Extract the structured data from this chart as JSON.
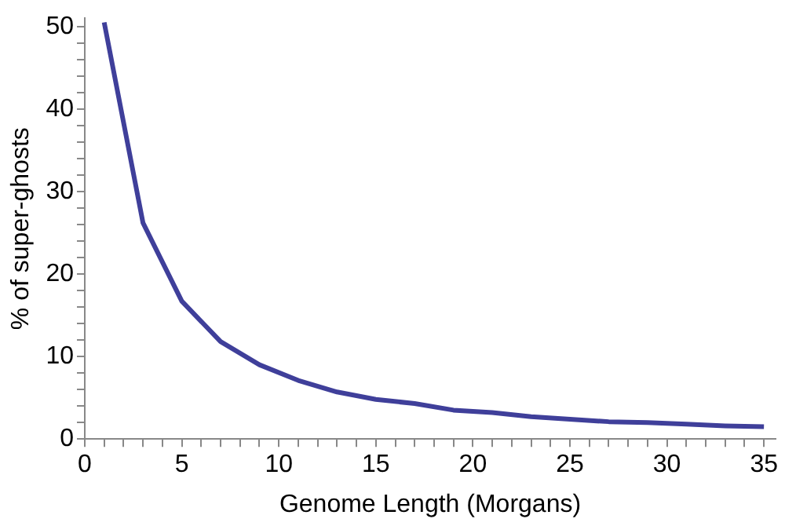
{
  "chart_data": {
    "type": "line",
    "xlabel": "Genome Length (Morgans)",
    "ylabel": "% of super-ghosts",
    "x": [
      1,
      3,
      5,
      7,
      9,
      11,
      13,
      15,
      17,
      19,
      21,
      23,
      25,
      27,
      29,
      31,
      33,
      35
    ],
    "series": [
      {
        "color": "#3f3f9a",
        "values": [
          50.5,
          26.2,
          16.7,
          11.8,
          9.0,
          7.1,
          5.7,
          4.8,
          4.3,
          3.5,
          3.2,
          2.7,
          2.4,
          2.1,
          2.0,
          1.8,
          1.6,
          1.5
        ]
      }
    ],
    "xlim": [
      0,
      35.6
    ],
    "ylim": [
      0,
      51
    ],
    "xticks": [
      0,
      {
        "value": 1,
        "label": null
      },
      {
        "value": 2,
        "label": null
      },
      {
        "value": 3,
        "label": null
      },
      {
        "value": 4,
        "label": null
      },
      5,
      {
        "value": 6,
        "label": null
      },
      {
        "value": 7,
        "label": null
      },
      {
        "value": 8,
        "label": null
      },
      {
        "value": 9,
        "label": null
      },
      10,
      {
        "value": 11,
        "label": null
      },
      {
        "value": 12,
        "label": null
      },
      {
        "value": 13,
        "label": null
      },
      {
        "value": 14,
        "label": null
      },
      15,
      {
        "value": 16,
        "label": null
      },
      {
        "value": 17,
        "label": null
      },
      {
        "value": 18,
        "label": null
      },
      {
        "value": 19,
        "label": null
      },
      20,
      {
        "value": 21,
        "label": null
      },
      {
        "value": 22,
        "label": null
      },
      {
        "value": 23,
        "label": null
      },
      {
        "value": 24,
        "label": null
      },
      25,
      {
        "value": 26,
        "label": null
      },
      {
        "value": 27,
        "label": null
      },
      {
        "value": 28,
        "label": null
      },
      {
        "value": 29,
        "label": null
      },
      30,
      {
        "value": 31,
        "label": null
      },
      {
        "value": 32,
        "label": null
      },
      {
        "value": 33,
        "label": null
      },
      {
        "value": 34,
        "label": null
      },
      35
    ],
    "yticks": [
      0,
      {
        "value": 2,
        "label": null
      },
      {
        "value": 4,
        "label": null
      },
      {
        "value": 6,
        "label": null
      },
      {
        "value": 8,
        "label": null
      },
      10,
      {
        "value": 12,
        "label": null
      },
      {
        "value": 14,
        "label": null
      },
      {
        "value": 16,
        "label": null
      },
      {
        "value": 18,
        "label": null
      },
      20,
      {
        "value": 22,
        "label": null
      },
      {
        "value": 24,
        "label": null
      },
      {
        "value": 26,
        "label": null
      },
      {
        "value": 28,
        "label": null
      },
      30,
      {
        "value": 32,
        "label": null
      },
      {
        "value": 34,
        "label": null
      },
      {
        "value": 36,
        "label": null
      },
      {
        "value": 38,
        "label": null
      },
      40,
      {
        "value": 42,
        "label": null
      },
      {
        "value": 44,
        "label": null
      },
      {
        "value": 46,
        "label": null
      },
      {
        "value": 48,
        "label": null
      },
      50
    ],
    "grid": false,
    "legend": false,
    "marker": "none",
    "line_style": "solid"
  }
}
